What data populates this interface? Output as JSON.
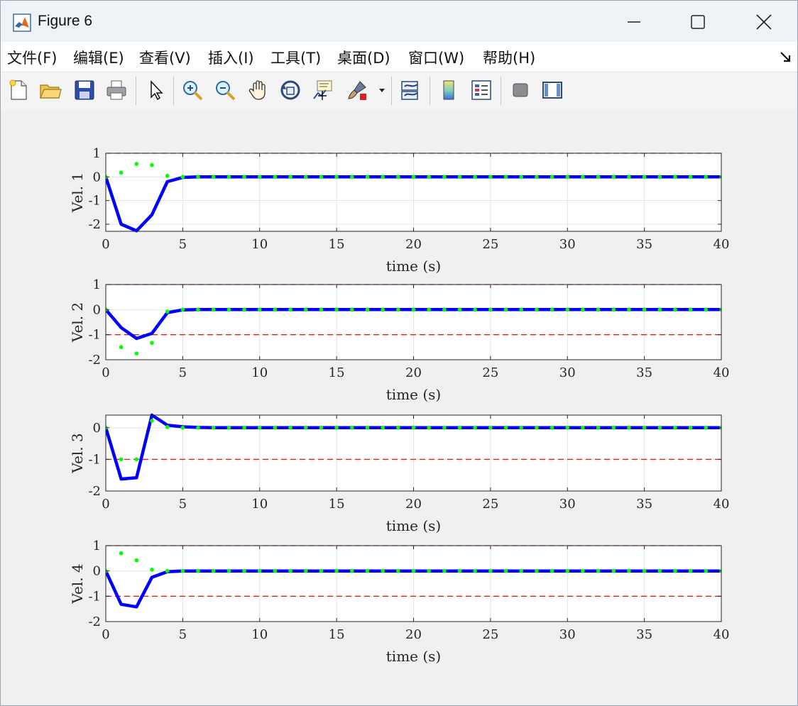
{
  "window": {
    "title": "Figure 6"
  },
  "menu": {
    "items": [
      "文件(F)",
      "编辑(E)",
      "查看(V)",
      "插入(I)",
      "工具(T)",
      "桌面(D)",
      "窗口(W)",
      "帮助(H)"
    ]
  },
  "toolbar": {
    "icons": [
      "new-figure-icon",
      "open-file-icon",
      "save-icon",
      "print-icon",
      "pointer-icon",
      "zoom-in-icon",
      "zoom-out-icon",
      "pan-hand-icon",
      "rotate-3d-icon",
      "data-cursor-icon",
      "brush-icon",
      "dropdown-arrow-icon",
      "link-plot-icon",
      "colorbar-icon",
      "legend-icon",
      "hide-plot-tools-icon",
      "show-plot-tools-icon"
    ]
  },
  "colors": {
    "trajectory": "#0000ff",
    "markers": "#00ff00",
    "bounds": "#e02020"
  },
  "chart_data": [
    {
      "type": "line",
      "ylabel": "Vel. 1",
      "xlabel": "time (s)",
      "xlim": [
        0,
        40
      ],
      "ylim": [
        -2.3,
        1
      ],
      "yticks": [
        "1",
        "0",
        "-1",
        "-2"
      ],
      "xticks": [
        "0",
        "5",
        "10",
        "15",
        "20",
        "25",
        "30",
        "35",
        "40"
      ],
      "grid": true,
      "bounds": [
        1
      ],
      "line_x": [
        0,
        1,
        2,
        3,
        4,
        5,
        6,
        7,
        8,
        9,
        10,
        11,
        12,
        13,
        14,
        15,
        16,
        17,
        18,
        19,
        20,
        21,
        22,
        23,
        24,
        25,
        26,
        27,
        28,
        29,
        30,
        31,
        32,
        33,
        34,
        35,
        36,
        37,
        38,
        39,
        40
      ],
      "line_y": [
        0,
        -2.0,
        -2.28,
        -1.6,
        -0.2,
        -0.02,
        0,
        0,
        0,
        0,
        0,
        0,
        0,
        0,
        0,
        0,
        0,
        0,
        0,
        0,
        0,
        0,
        0,
        0,
        0,
        0,
        0,
        0,
        0,
        0,
        0,
        0,
        0,
        0,
        0,
        0,
        0,
        0,
        0,
        0,
        0
      ],
      "marker_x": [
        0,
        1,
        2,
        3,
        4,
        5,
        6,
        7,
        8,
        9,
        10,
        11,
        12,
        13,
        14,
        15,
        16,
        17,
        18,
        19,
        20,
        21,
        22,
        23,
        24,
        25,
        26,
        27,
        28,
        29,
        30,
        31,
        32,
        33,
        34,
        35,
        36,
        37,
        38,
        39,
        40
      ],
      "marker_y": [
        0,
        0.18,
        0.55,
        0.5,
        0.05,
        0,
        0,
        0,
        0,
        0,
        0,
        0,
        0,
        0,
        0,
        0,
        0,
        0,
        0,
        0,
        0,
        0,
        0,
        0,
        0,
        0,
        0,
        0,
        0,
        0,
        0,
        0,
        0,
        0,
        0,
        0,
        0,
        0,
        0,
        0,
        0
      ]
    },
    {
      "type": "line",
      "ylabel": "Vel. 2",
      "xlabel": "time (s)",
      "xlim": [
        0,
        40
      ],
      "ylim": [
        -2,
        1
      ],
      "yticks": [
        "1",
        "0",
        "-1",
        "-2"
      ],
      "xticks": [
        "0",
        "5",
        "10",
        "15",
        "20",
        "25",
        "30",
        "35",
        "40"
      ],
      "grid": true,
      "bounds": [
        1,
        -1
      ],
      "line_x": [
        0,
        1,
        2,
        3,
        4,
        5,
        6,
        7,
        8,
        9,
        10,
        11,
        12,
        13,
        14,
        15,
        16,
        17,
        18,
        19,
        20,
        21,
        22,
        23,
        24,
        25,
        26,
        27,
        28,
        29,
        30,
        31,
        32,
        33,
        34,
        35,
        36,
        37,
        38,
        39,
        40
      ],
      "line_y": [
        0,
        -0.72,
        -1.15,
        -0.95,
        -0.12,
        -0.01,
        0,
        0,
        0,
        0,
        0,
        0,
        0,
        0,
        0,
        0,
        0,
        0,
        0,
        0,
        0,
        0,
        0,
        0,
        0,
        0,
        0,
        0,
        0,
        0,
        0,
        0,
        0,
        0,
        0,
        0,
        0,
        0,
        0,
        0,
        0
      ],
      "marker_x": [
        0,
        1,
        2,
        3,
        4,
        5,
        6,
        7,
        8,
        9,
        10,
        11,
        12,
        13,
        14,
        15,
        16,
        17,
        18,
        19,
        20,
        21,
        22,
        23,
        24,
        25,
        26,
        27,
        28,
        29,
        30,
        31,
        32,
        33,
        34,
        35,
        36,
        37,
        38,
        39,
        40
      ],
      "marker_y": [
        0,
        -1.5,
        -1.75,
        -1.33,
        -0.08,
        0,
        0,
        0,
        0,
        0,
        0,
        0,
        0,
        0,
        0,
        0,
        0,
        0,
        0,
        0,
        0,
        0,
        0,
        0,
        0,
        0,
        0,
        0,
        0,
        0,
        0,
        0,
        0,
        0,
        0,
        0,
        0,
        0,
        0,
        0,
        0
      ]
    },
    {
      "type": "line",
      "ylabel": "Vel. 3",
      "xlabel": "time (s)",
      "xlim": [
        0,
        40
      ],
      "ylim": [
        -2,
        0.4
      ],
      "yticks": [
        "0",
        "-1",
        "-2"
      ],
      "xticks": [
        "0",
        "5",
        "10",
        "15",
        "20",
        "25",
        "30",
        "35",
        "40"
      ],
      "grid": true,
      "bounds": [
        -1
      ],
      "line_x": [
        0,
        1,
        2,
        3,
        4,
        5,
        6,
        7,
        8,
        9,
        10,
        11,
        12,
        13,
        14,
        15,
        16,
        17,
        18,
        19,
        20,
        21,
        22,
        23,
        24,
        25,
        26,
        27,
        28,
        29,
        30,
        31,
        32,
        33,
        34,
        35,
        36,
        37,
        38,
        39,
        40
      ],
      "line_y": [
        0,
        -1.62,
        -1.58,
        0.4,
        0.08,
        0.03,
        0.01,
        0,
        0,
        0,
        0,
        0,
        0,
        0,
        0,
        0,
        0,
        0,
        0,
        0,
        0,
        0,
        0,
        0,
        0,
        0,
        0,
        0,
        0,
        0,
        0,
        0,
        0,
        0,
        0,
        0,
        0,
        0,
        0,
        0,
        0
      ],
      "marker_x": [
        0,
        1,
        2,
        3,
        4,
        5,
        6,
        7,
        8,
        9,
        10,
        11,
        12,
        13,
        14,
        15,
        16,
        17,
        18,
        19,
        20,
        21,
        22,
        23,
        24,
        25,
        26,
        27,
        28,
        29,
        30,
        31,
        32,
        33,
        34,
        35,
        36,
        37,
        38,
        39,
        40
      ],
      "marker_y": [
        0,
        -1,
        -1,
        0.22,
        0.02,
        0,
        0,
        0,
        0,
        0,
        0,
        0,
        0,
        0,
        0,
        0,
        0,
        0,
        0,
        0,
        0,
        0,
        0,
        0,
        0,
        0,
        0,
        0,
        0,
        0,
        0,
        0,
        0,
        0,
        0,
        0,
        0,
        0,
        0,
        0,
        0
      ]
    },
    {
      "type": "line",
      "ylabel": "Vel. 4",
      "xlabel": "time (s)",
      "xlim": [
        0,
        40
      ],
      "ylim": [
        -2,
        1
      ],
      "yticks": [
        "1",
        "0",
        "-1",
        "-2"
      ],
      "xticks": [
        "0",
        "5",
        "10",
        "15",
        "20",
        "25",
        "30",
        "35",
        "40"
      ],
      "grid": true,
      "bounds": [
        1,
        -1
      ],
      "line_x": [
        0,
        1,
        2,
        3,
        4,
        5,
        6,
        7,
        8,
        9,
        10,
        11,
        12,
        13,
        14,
        15,
        16,
        17,
        18,
        19,
        20,
        21,
        22,
        23,
        24,
        25,
        26,
        27,
        28,
        29,
        30,
        31,
        32,
        33,
        34,
        35,
        36,
        37,
        38,
        39,
        40
      ],
      "line_y": [
        0,
        -1.32,
        -1.42,
        -0.25,
        -0.03,
        0,
        0,
        0,
        0,
        0,
        0,
        0,
        0,
        0,
        0,
        0,
        0,
        0,
        0,
        0,
        0,
        0,
        0,
        0,
        0,
        0,
        0,
        0,
        0,
        0,
        0,
        0,
        0,
        0,
        0,
        0,
        0,
        0,
        0,
        0,
        0
      ],
      "marker_x": [
        0,
        1,
        2,
        3,
        4,
        5,
        6,
        7,
        8,
        9,
        10,
        11,
        12,
        13,
        14,
        15,
        16,
        17,
        18,
        19,
        20,
        21,
        22,
        23,
        24,
        25,
        26,
        27,
        28,
        29,
        30,
        31,
        32,
        33,
        34,
        35,
        36,
        37,
        38,
        39,
        40
      ],
      "marker_y": [
        0,
        0.7,
        0.42,
        0.05,
        0,
        0,
        0,
        0,
        0,
        0,
        0,
        0,
        0,
        0,
        0,
        0,
        0,
        0,
        0,
        0,
        0,
        0,
        0,
        0,
        0,
        0,
        0,
        0,
        0,
        0,
        0,
        0,
        0,
        0,
        0,
        0,
        0,
        0,
        0,
        0,
        0
      ]
    }
  ]
}
